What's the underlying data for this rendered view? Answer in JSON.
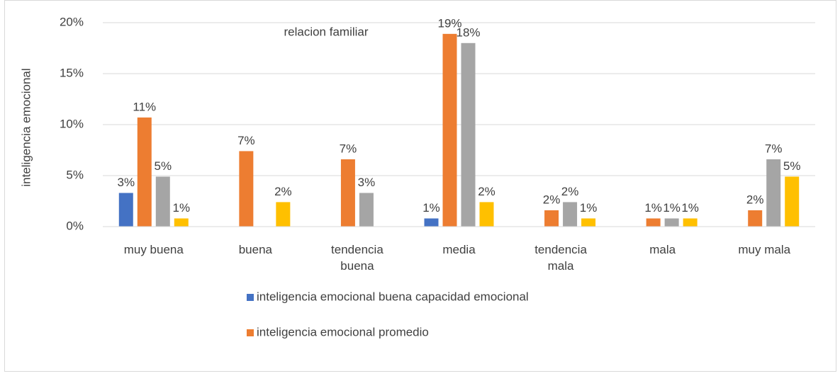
{
  "chart_data": {
    "type": "bar",
    "title": "relacion familiar",
    "y_label": "inteligencia emocional",
    "categories": [
      "muy buena",
      "buena",
      "tendencia buena",
      "media",
      "tendencia mala",
      "mala",
      "muy mala"
    ],
    "series": [
      {
        "name": "inteligencia emocional buena capacidad emocional",
        "color": "#4472c4",
        "values": [
          3.3,
          null,
          null,
          0.8,
          null,
          null,
          null
        ],
        "value_labels": [
          "3%",
          null,
          null,
          "1%",
          null,
          null,
          null
        ]
      },
      {
        "name": "inteligencia emocional promedio",
        "color": "#ed7d31",
        "values": [
          10.7,
          7.4,
          6.6,
          18.9,
          1.6,
          0.8,
          1.6
        ],
        "value_labels": [
          "11%",
          "7%",
          "7%",
          "19%",
          "2%",
          "1%",
          "2%"
        ]
      },
      {
        "color": "#a5a5a5",
        "values": [
          4.9,
          null,
          3.3,
          18.0,
          2.4,
          0.8,
          6.6
        ],
        "value_labels": [
          "5%",
          null,
          "3%",
          "18%",
          "2%",
          "1%",
          "7%"
        ]
      },
      {
        "color": "#ffc000",
        "values": [
          0.8,
          2.4,
          null,
          2.4,
          0.8,
          0.8,
          4.9
        ],
        "value_labels": [
          "1%",
          "2%",
          null,
          "2%",
          "1%",
          "1%",
          "5%"
        ]
      }
    ],
    "ylim": [
      0,
      20
    ],
    "yticks": [
      {
        "value": 0,
        "label": "0%"
      },
      {
        "value": 5,
        "label": "5%"
      },
      {
        "value": 10,
        "label": "10%"
      },
      {
        "value": 15,
        "label": "15%"
      },
      {
        "value": 20,
        "label": "20%"
      }
    ],
    "grid": true
  }
}
